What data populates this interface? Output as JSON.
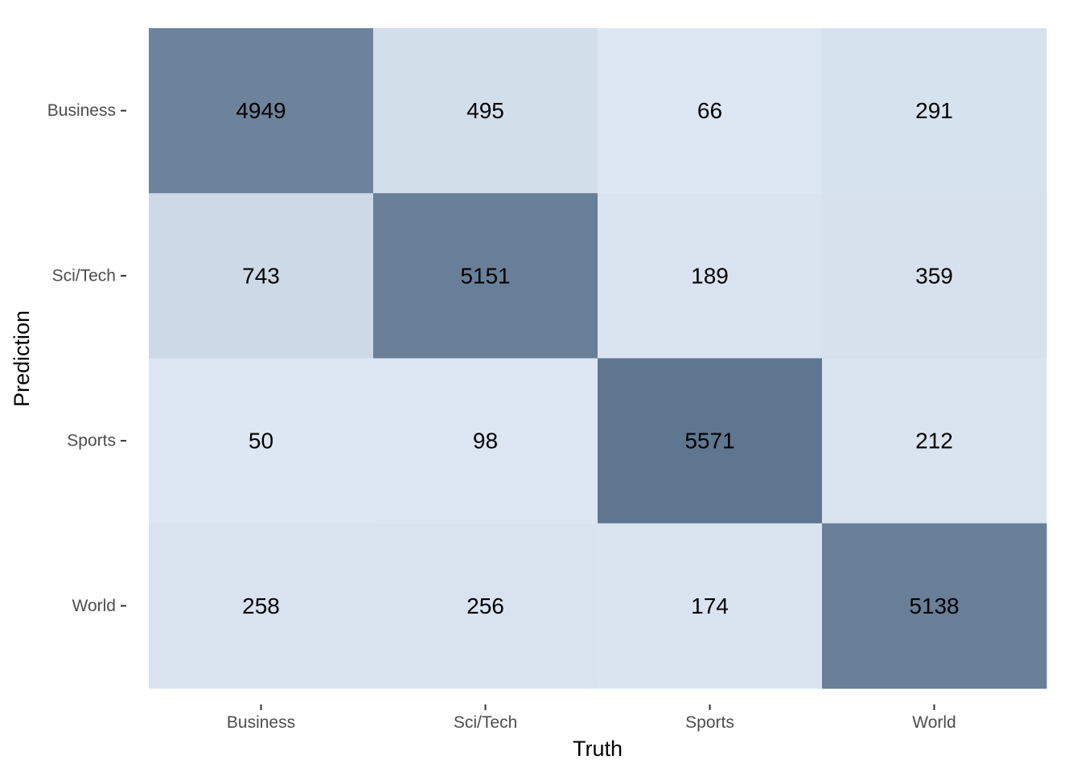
{
  "chart_data": {
    "type": "heatmap",
    "title": "",
    "xlabel": "Truth",
    "ylabel": "Prediction",
    "x_categories": [
      "Business",
      "Sci/Tech",
      "Sports",
      "World"
    ],
    "y_categories": [
      "Business",
      "Sci/Tech",
      "Sports",
      "World"
    ],
    "values": [
      [
        4949,
        495,
        66,
        291
      ],
      [
        743,
        5151,
        189,
        359
      ],
      [
        50,
        98,
        5571,
        212
      ],
      [
        258,
        256,
        174,
        5138
      ]
    ],
    "color_low": "#dde7f3",
    "color_high": "#5f7690",
    "grid": false,
    "legend": "none"
  }
}
